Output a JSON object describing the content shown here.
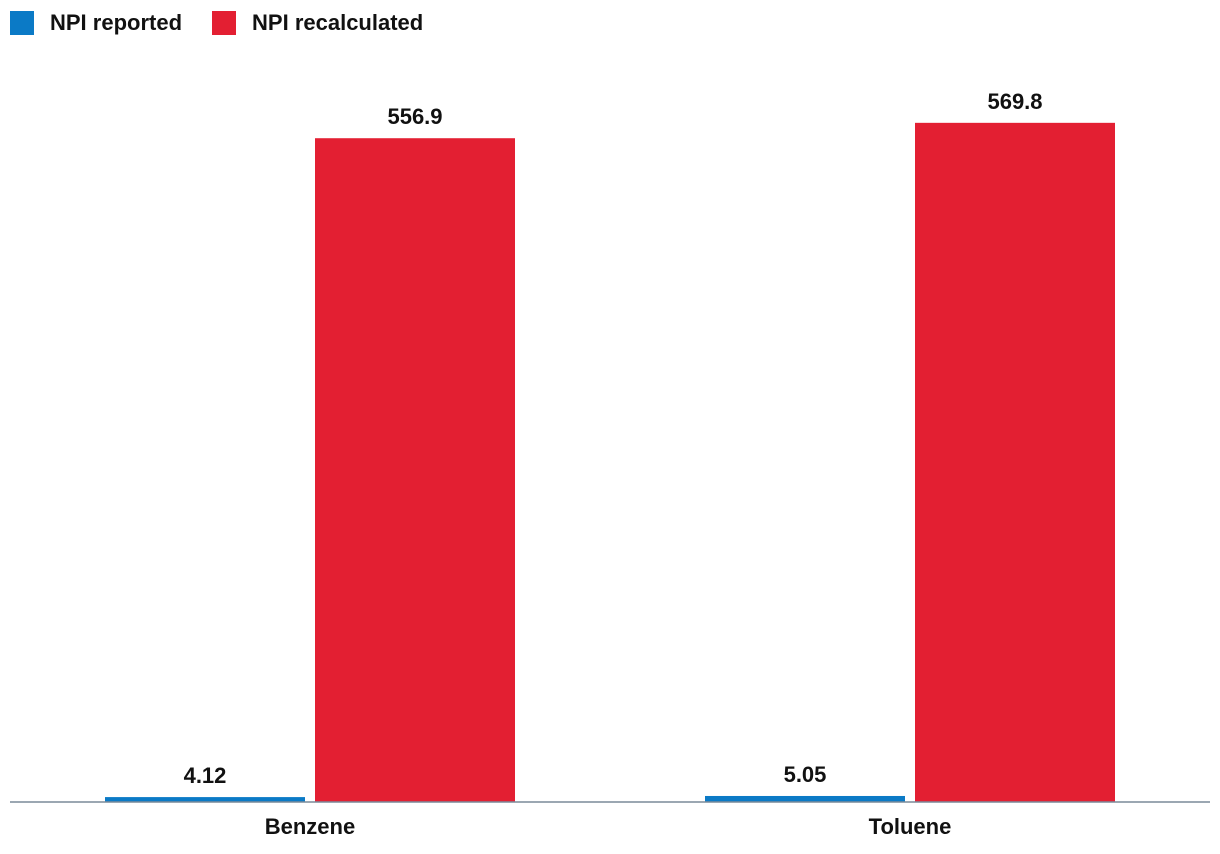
{
  "chart_data": {
    "type": "bar",
    "categories": [
      "Benzene",
      "Toluene"
    ],
    "series": [
      {
        "name": "NPI reported",
        "color": "#0b7ac6",
        "values": [
          4.12,
          5.05
        ],
        "labels": [
          "4.12",
          "5.05"
        ]
      },
      {
        "name": "NPI recalculated",
        "color": "#e31f32",
        "values": [
          556.9,
          569.8
        ],
        "labels": [
          "556.9",
          "569.8"
        ]
      }
    ],
    "title": "",
    "xlabel": "",
    "ylabel": "",
    "ylim": [
      0,
      620
    ],
    "grid": false,
    "legend": "top-left",
    "axis_color": "#7a8a99"
  }
}
